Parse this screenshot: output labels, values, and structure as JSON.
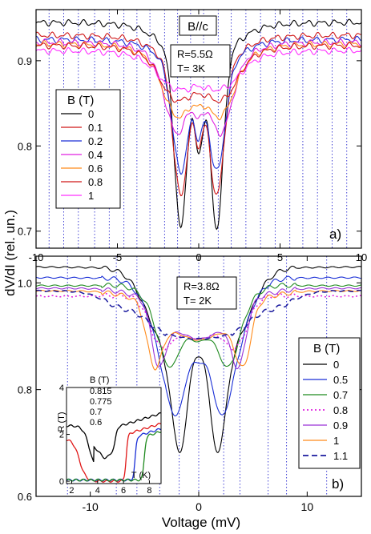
{
  "figure": {
    "ylabel": "dV/dI (rel. un.)",
    "xlabel": "Voltage (mV)"
  },
  "chart_data": [
    {
      "type": "line",
      "panel_label": "a)",
      "header_box": "B//c",
      "annotation": [
        "R=5.5Ω",
        "T= 3K"
      ],
      "legend_title": "B (T)",
      "legend_placement": "center-left",
      "xlim": [
        -10,
        10
      ],
      "ylim": [
        0.68,
        0.96
      ],
      "x_ticks": [
        -10,
        -5,
        0,
        5,
        10
      ],
      "y_ticks": [
        0.7,
        0.8,
        0.9
      ],
      "dotted_vertical_lines_mV": [
        -9.2,
        -8.3,
        -7.4,
        -6.4,
        -5.5,
        -4.6,
        -3.8,
        -3.0,
        -2.1,
        -1.3,
        -0.5,
        0.3,
        1.2,
        2.0,
        2.9,
        3.8,
        4.7,
        5.6,
        6.4,
        7.3,
        8.2,
        9.1
      ],
      "series": [
        {
          "name": "0",
          "color": "#000000",
          "style": "solid",
          "edge": 0.945,
          "shoulder": 0.905,
          "sh_w": 2.6,
          "dip": 0.703,
          "dip_pos": 1.1,
          "dip_w": 0.55,
          "center": 0.79
        },
        {
          "name": "0.1",
          "color": "#d01818",
          "style": "solid",
          "edge": 0.93,
          "shoulder": 0.89,
          "sh_w": 2.6,
          "dip": 0.742,
          "dip_pos": 1.1,
          "dip_w": 0.65,
          "center": 0.798
        },
        {
          "name": "0.2",
          "color": "#1a2fd6",
          "style": "solid",
          "edge": 0.925,
          "shoulder": 0.89,
          "sh_w": 2.6,
          "dip": 0.77,
          "dip_pos": 1.1,
          "dip_w": 0.7,
          "center": 0.806
        },
        {
          "name": "0.4",
          "color": "#e020e0",
          "style": "solid",
          "edge": 0.922,
          "shoulder": 0.875,
          "sh_w": 2.6,
          "dip": 0.815,
          "dip_pos": 1.3,
          "dip_w": 0.9,
          "center": 0.83
        },
        {
          "name": "0.6",
          "color": "#ff8a1a",
          "style": "solid",
          "edge": 0.92,
          "shoulder": 0.866,
          "sh_w": 2.6,
          "dip": 0.834,
          "dip_pos": 1.2,
          "dip_w": 1.0,
          "center": 0.845
        },
        {
          "name": "0.8",
          "color": "#d01818",
          "style": "solid",
          "edge": 0.918,
          "shoulder": 0.87,
          "sh_w": 2.6,
          "dip": 0.853,
          "dip_pos": 1.2,
          "dip_w": 1.1,
          "center": 0.86
        },
        {
          "name": "1",
          "color": "#ff30ff",
          "style": "solid",
          "edge": 0.912,
          "shoulder": 0.875,
          "sh_w": 2.8,
          "dip": 0.866,
          "dip_pos": 1.0,
          "dip_w": 1.3,
          "center": 0.87
        }
      ]
    },
    {
      "type": "line",
      "panel_label": "b)",
      "annotation": [
        "R=3.8Ω",
        "T= 2K"
      ],
      "legend_title": "B (T)",
      "legend_placement": "center-right",
      "xlim": [
        -15,
        15
      ],
      "ylim": [
        0.6,
        1.05
      ],
      "x_ticks": [
        -10,
        0,
        10
      ],
      "y_ticks": [
        0.6,
        0.8,
        1.0
      ],
      "dotted_vertical_lines_mV": [
        -12.1,
        -7.6,
        -5.7,
        -3.6,
        -1.8,
        0.0,
        2.3,
        3.8,
        6.4,
        8.1,
        11.8
      ],
      "series": [
        {
          "name": "0",
          "color": "#000000",
          "style": "solid",
          "edge": 1.03,
          "peak": 1.035,
          "peak_pos": 7.0,
          "dip": 0.68,
          "dip_pos": 1.7,
          "dip_w": 1.1,
          "center": 0.86
        },
        {
          "name": "0.5",
          "color": "#1a2fd6",
          "style": "solid",
          "edge": 1.01,
          "peak": 1.015,
          "peak_pos": 6.5,
          "dip": 0.75,
          "dip_pos": 2.1,
          "dip_w": 1.3,
          "center": 0.85
        },
        {
          "name": "0.7",
          "color": "#1f8a1f",
          "style": "solid",
          "edge": 0.995,
          "peak": 1.0,
          "peak_pos": 6.2,
          "dip": 0.842,
          "dip_pos": 2.6,
          "dip_w": 1.2,
          "center": 0.89
        },
        {
          "name": "0.8",
          "color": "#e020e0",
          "style": "dotted",
          "edge": 0.975,
          "peak": 0.98,
          "peak_pos": 6.0,
          "dip": 0.878,
          "dip_pos": 3.2,
          "dip_w": 1.4,
          "center": 0.895
        },
        {
          "name": "0.9",
          "color": "#9a32d8",
          "style": "solid",
          "edge": 0.99,
          "peak": 0.985,
          "peak_pos": 6.0,
          "dip": 0.84,
          "dip_pos": 3.6,
          "dip_w": 0.9,
          "center": 0.895
        },
        {
          "name": "1",
          "color": "#ff8a1a",
          "style": "solid",
          "edge": 0.985,
          "peak": 0.98,
          "peak_pos": 6.2,
          "dip": 0.84,
          "dip_pos": 4.0,
          "dip_w": 1.0,
          "center": 0.893
        },
        {
          "name": "1.1",
          "color": "#1a1a9e",
          "style": "dashed",
          "edge": 0.985,
          "peak": 0.96,
          "peak_pos": 7.0,
          "dip": 0.895,
          "dip_pos": 0.0,
          "dip_w": 4.0,
          "center": 0.895
        }
      ],
      "inset": {
        "xlabel": "T (K)",
        "ylabel": "R (T)",
        "xlim": [
          1.6,
          8.9
        ],
        "ylim": [
          -0.1,
          4.0
        ],
        "x_ticks": [
          2,
          4,
          6,
          8
        ],
        "y_ticks": [
          0,
          2,
          4
        ],
        "legend_title": "B (T)",
        "series": [
          {
            "name": "0.815",
            "color": "#000000",
            "Tc": 5.4,
            "normal": 2.3,
            "minT": 4.6,
            "tail": 3.4
          },
          {
            "name": "0.775",
            "color": "#e01818",
            "Tc": 6.2,
            "normal": 2.0,
            "minT": 0.0,
            "tail": 2.6
          },
          {
            "name": "0.7",
            "color": "#1a2fd6",
            "Tc": 6.9,
            "normal": 1.9,
            "minT": 0.0,
            "tail": 0.0
          },
          {
            "name": "0.6",
            "color": "#1f8a1f",
            "Tc": 7.6,
            "normal": 1.9,
            "minT": 0.0,
            "tail": 0.0
          }
        ]
      }
    }
  ]
}
